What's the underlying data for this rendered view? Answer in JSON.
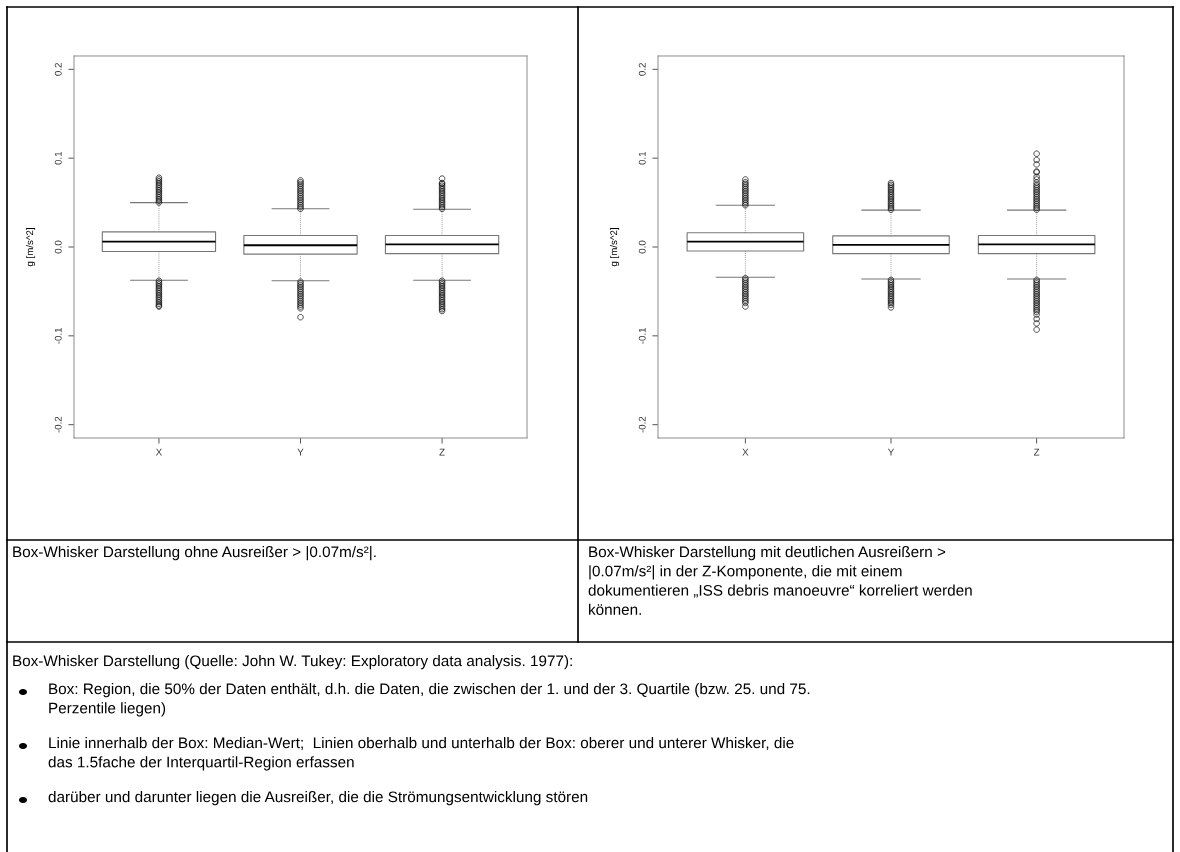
{
  "chart_data": [
    {
      "type": "box",
      "ylabel": "g [m/s^2]",
      "categories": [
        "X",
        "Y",
        "Z"
      ],
      "ylim": [
        -0.215,
        0.215
      ],
      "yticks": [
        -0.2,
        -0.1,
        {
          "value": 0,
          "label": "0.0"
        },
        0.1,
        0.2
      ],
      "grid": false,
      "boxes": [
        {
          "low": -0.0375,
          "q1": -0.005,
          "median": 0.006,
          "q3": 0.017,
          "high": 0.05,
          "outliers": [
            0.05,
            0.052,
            0.054,
            0.056,
            0.058,
            0.06,
            0.062,
            0.064,
            0.066,
            0.068,
            0.07,
            0.072,
            0.074,
            0.076,
            0.078,
            -0.038,
            -0.04,
            -0.042,
            -0.044,
            -0.046,
            -0.048,
            -0.05,
            -0.052,
            -0.054,
            -0.056,
            -0.058,
            -0.06,
            -0.062,
            -0.064,
            -0.066,
            -0.067
          ]
        },
        {
          "low": -0.038,
          "q1": -0.008,
          "median": 0.002,
          "q3": 0.013,
          "high": 0.043,
          "outliers": [
            0.043,
            0.045,
            0.047,
            0.049,
            0.051,
            0.053,
            0.055,
            0.057,
            0.059,
            0.061,
            0.063,
            0.065,
            0.067,
            0.069,
            0.071,
            0.073,
            0.075,
            -0.039,
            -0.041,
            -0.043,
            -0.045,
            -0.047,
            -0.049,
            -0.051,
            -0.053,
            -0.055,
            -0.057,
            -0.059,
            -0.061,
            -0.063,
            -0.065,
            -0.067,
            -0.069,
            -0.079
          ]
        },
        {
          "low": -0.0375,
          "q1": -0.0075,
          "median": 0.003,
          "q3": 0.013,
          "high": 0.0425,
          "outliers": [
            0.043,
            0.045,
            0.047,
            0.049,
            0.051,
            0.053,
            0.055,
            0.057,
            0.059,
            0.061,
            0.063,
            0.065,
            0.067,
            0.069,
            0.071,
            0.072,
            0.077,
            -0.038,
            -0.04,
            -0.042,
            -0.044,
            -0.046,
            -0.048,
            -0.05,
            -0.052,
            -0.054,
            -0.056,
            -0.058,
            -0.06,
            -0.062,
            -0.064,
            -0.066,
            -0.068,
            -0.07,
            -0.072
          ]
        }
      ],
      "annotations": [
        "Box-Whisker Darstellung ohne Ausreißer > |0.07m/s²|."
      ]
    },
    {
      "type": "box",
      "ylabel": "g [m/s^2]",
      "categories": [
        "X",
        "Y",
        "Z"
      ],
      "ylim": [
        -0.215,
        0.215
      ],
      "yticks": [
        -0.2,
        -0.1,
        {
          "value": 0,
          "label": "0.0"
        },
        0.1,
        0.2
      ],
      "grid": false,
      "boxes": [
        {
          "low": -0.034,
          "q1": -0.0045,
          "median": 0.006,
          "q3": 0.016,
          "high": 0.047,
          "outliers": [
            0.047,
            0.049,
            0.051,
            0.053,
            0.055,
            0.057,
            0.059,
            0.061,
            0.063,
            0.065,
            0.067,
            0.069,
            0.071,
            0.073,
            0.076,
            -0.035,
            -0.037,
            -0.039,
            -0.041,
            -0.043,
            -0.045,
            -0.047,
            -0.049,
            -0.051,
            -0.053,
            -0.055,
            -0.057,
            -0.059,
            -0.061,
            -0.063,
            -0.067
          ]
        },
        {
          "low": -0.036,
          "q1": -0.0075,
          "median": 0.0025,
          "q3": 0.0125,
          "high": 0.0415,
          "outliers": [
            0.042,
            0.044,
            0.046,
            0.048,
            0.05,
            0.052,
            0.054,
            0.056,
            0.058,
            0.06,
            0.062,
            0.064,
            0.066,
            0.068,
            0.07,
            0.072,
            -0.037,
            -0.039,
            -0.041,
            -0.043,
            -0.045,
            -0.047,
            -0.049,
            -0.051,
            -0.053,
            -0.055,
            -0.057,
            -0.059,
            -0.061,
            -0.063,
            -0.065,
            -0.068
          ]
        },
        {
          "low": -0.036,
          "q1": -0.0075,
          "median": 0.003,
          "q3": 0.013,
          "high": 0.0415,
          "outliers": [
            0.042,
            0.044,
            0.046,
            0.048,
            0.05,
            0.052,
            0.054,
            0.056,
            0.058,
            0.06,
            0.062,
            0.064,
            0.066,
            0.068,
            0.07,
            0.0725,
            0.076,
            0.079,
            0.084,
            0.085,
            0.093,
            0.098,
            0.105,
            -0.037,
            -0.039,
            -0.041,
            -0.043,
            -0.045,
            -0.047,
            -0.049,
            -0.051,
            -0.053,
            -0.055,
            -0.057,
            -0.059,
            -0.061,
            -0.063,
            -0.065,
            -0.067,
            -0.069,
            -0.071,
            -0.073,
            -0.076,
            -0.081,
            -0.086,
            -0.093
          ]
        }
      ],
      "annotations": [
        "Box-Whisker Darstellung mit deutlichen Ausreißern >\n|0.07m/s²| in der Z-Komponente, die mit einem\ndokumentieren „ISS debris manoeuvre“ korreliert werden\nkönnen."
      ]
    },
    {
      "type": "other",
      "annotations": [
        "Box-Whisker Darstellung (Quelle: John W. Tukey: Exploratory data analysis. 1977):",
        "Box: Region, die 50% der Daten enthält, d.h. die Daten, die zwischen der 1. und der 3. Quartile (bzw. 25. und 75.\nPerzentile liegen)",
        "Linie innerhalb der Box: Median-Wert;  Linien oberhalb und unterhalb der Box: oberer und unterer Whisker, die\ndas 1.5fache der Interquartil-Region erfassen",
        "darüber und darunter liegen die Ausreißer, die die Strömungsentwicklung stören"
      ]
    }
  ]
}
